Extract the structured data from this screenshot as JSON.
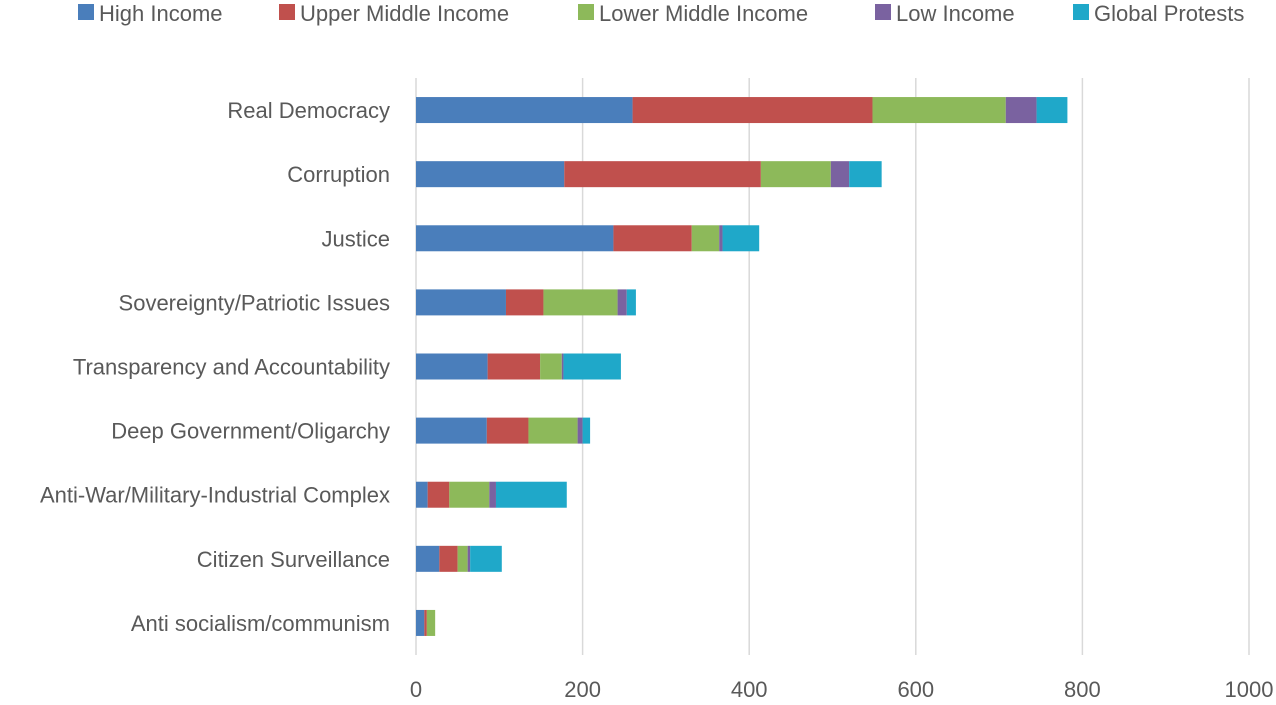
{
  "chart_data": {
    "type": "bar",
    "orientation": "horizontal",
    "stacked": true,
    "title": "",
    "xlabel": "",
    "ylabel": "",
    "xlim": [
      0,
      1000
    ],
    "xticks": [
      "0",
      "200",
      "400",
      "600",
      "800",
      "1000"
    ],
    "grid": "vertical",
    "legend_position": "top",
    "categories": [
      "Real Democracy",
      "Corruption",
      "Justice",
      "Sovereignty/Patriotic Issues",
      "Transparency and Accountability",
      "Deep Government/Oligarchy",
      "Anti-War/Military-Industrial Complex",
      "Citizen Surveillance",
      "Anti socialism/communism"
    ],
    "series": [
      {
        "name": "High Income",
        "color": "#4a7ebb",
        "values": [
          260,
          178,
          237,
          108,
          86,
          85,
          14,
          28,
          10
        ]
      },
      {
        "name": "Upper Middle Income",
        "color": "#c0504d",
        "values": [
          288,
          236,
          94,
          45,
          63,
          50,
          26,
          22,
          3
        ]
      },
      {
        "name": "Lower Middle Income",
        "color": "#8db95a",
        "values": [
          160,
          84,
          33,
          89,
          26,
          59,
          48,
          12,
          10
        ]
      },
      {
        "name": "Low Income",
        "color": "#7a62a0",
        "values": [
          37,
          22,
          4,
          11,
          2,
          6,
          8,
          3,
          0
        ]
      },
      {
        "name": "Global Protests",
        "color": "#1fa8c9",
        "values": [
          37,
          39,
          44,
          11,
          69,
          9,
          85,
          38,
          0
        ]
      }
    ]
  }
}
